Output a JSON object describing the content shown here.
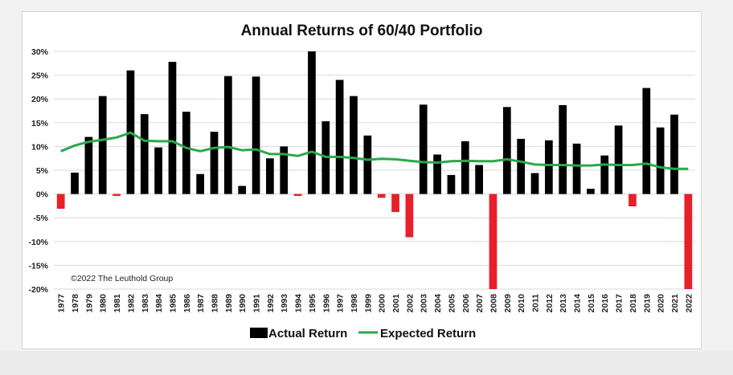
{
  "chart_data": {
    "type": "bar",
    "title": "Annual Returns of 60/40 Portfolio",
    "xlabel": "",
    "ylabel": "",
    "ylim": [
      -20,
      30
    ],
    "yticks": [
      30,
      25,
      20,
      15,
      10,
      5,
      0,
      -5,
      -10,
      -15,
      -20
    ],
    "ytick_labels": [
      "30%",
      "25%",
      "20%",
      "15%",
      "10%",
      "5%",
      "0%",
      "-5%",
      "-10%",
      "-15%",
      "-20%"
    ],
    "grid": true,
    "legend_position": "bottom",
    "copyright": "©2022 The Leuthold Group",
    "categories": [
      "1977",
      "1978",
      "1979",
      "1980",
      "1981",
      "1982",
      "1983",
      "1984",
      "1985",
      "1986",
      "1987",
      "1988",
      "1989",
      "1990",
      "1991",
      "1992",
      "1993",
      "1994",
      "1995",
      "1996",
      "1997",
      "1998",
      "1999",
      "2000",
      "2001",
      "2002",
      "2003",
      "2004",
      "2005",
      "2006",
      "2007",
      "2008",
      "2009",
      "2010",
      "2011",
      "2012",
      "2013",
      "2014",
      "2015",
      "2016",
      "2017",
      "2018",
      "2019",
      "2020",
      "2021",
      "2022"
    ],
    "series": [
      {
        "name": "Actual Return",
        "kind": "bar",
        "color": "#000000",
        "negative_color": "#e8202a",
        "values": [
          -3.1,
          4.5,
          12.0,
          20.6,
          -0.4,
          26.0,
          16.8,
          9.8,
          27.8,
          17.3,
          4.2,
          13.1,
          24.8,
          1.7,
          24.7,
          7.5,
          10.0,
          -0.4,
          30.0,
          15.3,
          24.0,
          20.6,
          12.3,
          -0.8,
          -3.8,
          -9.1,
          18.8,
          8.3,
          4.0,
          11.1,
          6.1,
          -20.0,
          18.3,
          11.6,
          4.4,
          11.3,
          18.7,
          10.6,
          1.1,
          8.1,
          14.4,
          -2.6,
          22.3,
          14.0,
          16.7,
          -20.0
        ]
      },
      {
        "name": "Expected Return",
        "kind": "line",
        "color": "#2ca84a",
        "values": [
          9.0,
          10.2,
          11.0,
          11.4,
          11.9,
          12.9,
          11.2,
          11.1,
          11.1,
          9.7,
          9.0,
          9.7,
          9.9,
          9.2,
          9.4,
          8.4,
          8.4,
          8.0,
          8.9,
          7.8,
          7.8,
          7.6,
          7.2,
          7.4,
          7.3,
          7.0,
          6.7,
          6.6,
          6.9,
          7.0,
          6.9,
          6.9,
          7.3,
          6.8,
          6.2,
          6.1,
          6.1,
          6.0,
          6.0,
          6.2,
          6.1,
          6.1,
          6.4,
          5.6,
          5.3,
          5.3
        ]
      }
    ]
  }
}
